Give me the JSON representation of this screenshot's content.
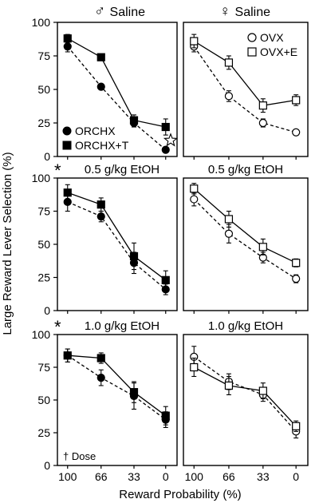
{
  "figure": {
    "ylabel": "Large Reward Lever Selection (%)",
    "xlabel": "Reward Probability (%)",
    "column_headers": [
      {
        "symbol": "♂",
        "label": "Saline"
      },
      {
        "symbol": "♀",
        "label": "Saline"
      }
    ],
    "dose_note": "† Dose",
    "sig_mark": "*"
  },
  "chart_data": [
    {
      "type": "line",
      "row": 0,
      "col": 0,
      "title": "",
      "sig": false,
      "ylim": [
        0,
        100
      ],
      "categories": [
        "100",
        "66",
        "33",
        "0"
      ],
      "yticks": [
        "0",
        "25",
        "50",
        "75",
        "100"
      ],
      "series": [
        {
          "name": "ORCHX",
          "marker": "circle",
          "filled": true,
          "dashed": true,
          "values": [
            82,
            52,
            25,
            5
          ],
          "err": [
            4,
            2,
            3,
            2
          ]
        },
        {
          "name": "ORCHX+T",
          "marker": "square",
          "filled": true,
          "dashed": false,
          "values": [
            88,
            74,
            27,
            22
          ],
          "err": [
            3,
            2,
            4,
            6
          ]
        }
      ],
      "legend_position": "bottom-left",
      "annotation": "star"
    },
    {
      "type": "line",
      "row": 0,
      "col": 1,
      "title": "",
      "sig": false,
      "ylim": [
        0,
        100
      ],
      "categories": [
        "100",
        "66",
        "33",
        "0"
      ],
      "yticks": [],
      "series": [
        {
          "name": "OVX",
          "marker": "circle",
          "filled": false,
          "dashed": true,
          "values": [
            82,
            45,
            25,
            18
          ],
          "err": [
            4,
            4,
            3,
            2
          ]
        },
        {
          "name": "OVX+E",
          "marker": "square",
          "filled": false,
          "dashed": false,
          "values": [
            86,
            70,
            38,
            42
          ],
          "err": [
            5,
            5,
            5,
            4
          ]
        }
      ],
      "legend_position": "top-right"
    },
    {
      "type": "line",
      "row": 1,
      "col": 0,
      "title": "0.5 g/kg EtOH",
      "sig": true,
      "ylim": [
        0,
        100
      ],
      "categories": [
        "100",
        "66",
        "33",
        "0"
      ],
      "yticks": [
        "0",
        "25",
        "50",
        "75",
        "100"
      ],
      "series": [
        {
          "name": "ORCHX",
          "marker": "circle",
          "filled": true,
          "dashed": true,
          "values": [
            82,
            71,
            36,
            16
          ],
          "err": [
            7,
            4,
            8,
            4
          ]
        },
        {
          "name": "ORCHX+T",
          "marker": "square",
          "filled": true,
          "dashed": false,
          "values": [
            89,
            80,
            41,
            23
          ],
          "err": [
            6,
            5,
            10,
            7
          ]
        }
      ]
    },
    {
      "type": "line",
      "row": 1,
      "col": 1,
      "title": "0.5 g/kg EtOH",
      "sig": false,
      "ylim": [
        0,
        100
      ],
      "categories": [
        "100",
        "66",
        "33",
        "0"
      ],
      "yticks": [],
      "series": [
        {
          "name": "OVX",
          "marker": "circle",
          "filled": false,
          "dashed": true,
          "values": [
            84,
            58,
            40,
            24
          ],
          "err": [
            5,
            7,
            4,
            3
          ]
        },
        {
          "name": "OVX+E",
          "marker": "square",
          "filled": false,
          "dashed": false,
          "values": [
            92,
            69,
            48,
            36
          ],
          "err": [
            4,
            6,
            6,
            3
          ]
        }
      ]
    },
    {
      "type": "line",
      "row": 2,
      "col": 0,
      "title": "1.0 g/kg EtOH",
      "sig": true,
      "ylim": [
        0,
        100
      ],
      "categories": [
        "100",
        "66",
        "33",
        "0"
      ],
      "yticks": [
        "0",
        "25",
        "50",
        "75",
        "100"
      ],
      "series": [
        {
          "name": "ORCHX",
          "marker": "circle",
          "filled": true,
          "dashed": true,
          "values": [
            84,
            67,
            53,
            35
          ],
          "err": [
            5,
            6,
            10,
            6
          ]
        },
        {
          "name": "ORCHX+T",
          "marker": "square",
          "filled": true,
          "dashed": false,
          "values": [
            84,
            82,
            56,
            38
          ],
          "err": [
            5,
            4,
            8,
            7
          ]
        }
      ]
    },
    {
      "type": "line",
      "row": 2,
      "col": 1,
      "title": "1.0 g/kg EtOH",
      "sig": false,
      "ylim": [
        0,
        100
      ],
      "categories": [
        "100",
        "66",
        "33",
        "0"
      ],
      "yticks": [],
      "series": [
        {
          "name": "OVX",
          "marker": "circle",
          "filled": false,
          "dashed": true,
          "values": [
            83,
            64,
            54,
            26
          ],
          "err": [
            8,
            6,
            5,
            5
          ]
        },
        {
          "name": "OVX+E",
          "marker": "square",
          "filled": false,
          "dashed": false,
          "values": [
            75,
            61,
            57,
            30
          ],
          "err": [
            7,
            7,
            6,
            4
          ]
        }
      ]
    }
  ]
}
